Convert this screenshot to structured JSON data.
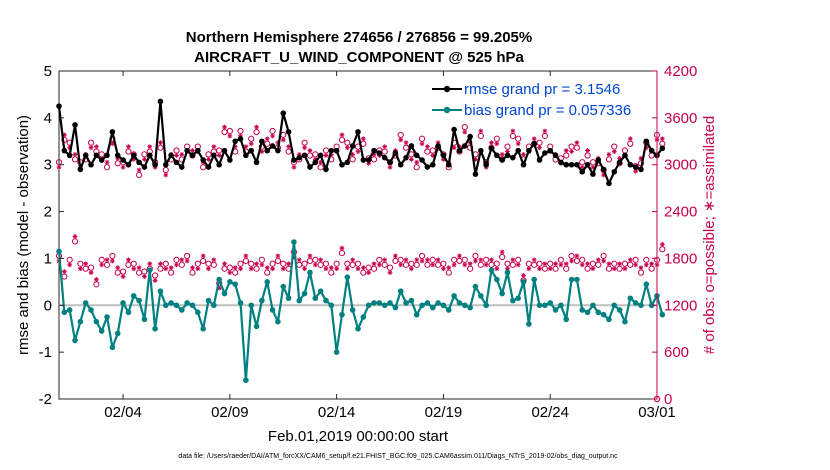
{
  "chart_data": {
    "type": "line",
    "title_line1": "Northern Hemisphere 274656 / 276856 = 99.205%",
    "title_line2": "AIRCRAFT_U_WIND_COMPONENT @ 525 hPa",
    "xlabel": "Feb.01,2019 00:00:00 start",
    "ylabel_left": "rmse and bias (model - observation)",
    "ylabel_right": "# of obs: o=possible; ∗=assimilated",
    "x_range": [
      1,
      29
    ],
    "y_left_range": [
      -2,
      5
    ],
    "y_right_range": [
      0,
      4200
    ],
    "x_ticks": [
      {
        "x": 4,
        "label": "02/04"
      },
      {
        "x": 9,
        "label": "02/09"
      },
      {
        "x": 14,
        "label": "02/14"
      },
      {
        "x": 19,
        "label": "02/19"
      },
      {
        "x": 24,
        "label": "02/24"
      },
      {
        "x": 29,
        "label": "03/01"
      }
    ],
    "y_left_ticks": [
      -2,
      -1,
      0,
      1,
      2,
      3,
      4,
      5
    ],
    "y_right_ticks": [
      0,
      600,
      1200,
      1800,
      2400,
      3000,
      3600,
      4200
    ],
    "legend": [
      {
        "name": "rmse grand pr = 3.1546",
        "color": "#000000"
      },
      {
        "name": "bias grand pr = 0.057336",
        "color": "#008080"
      }
    ],
    "colors": {
      "rmse": "#000000",
      "bias": "#008080",
      "counts": "#c8004e",
      "zero_line": "#bfbfbf"
    },
    "series": [
      {
        "name": "rmse",
        "axis": "left",
        "x_start": 1.0,
        "x_step": 0.25,
        "values": [
          4.25,
          3.3,
          3.2,
          3.85,
          2.9,
          3.2,
          3.0,
          3.2,
          3.1,
          3.2,
          3.7,
          3.2,
          3.1,
          3.0,
          3.2,
          3.05,
          2.95,
          3.2,
          3.0,
          4.35,
          3.0,
          3.2,
          3.05,
          2.95,
          3.3,
          3.2,
          3.3,
          3.1,
          2.95,
          3.2,
          3.0,
          3.3,
          3.1,
          3.5,
          3.55,
          3.2,
          3.3,
          3.05,
          3.5,
          3.3,
          3.4,
          3.3,
          4.1,
          3.7,
          3.1,
          3.15,
          3.2,
          2.95,
          3.05,
          3.2,
          2.9,
          3.3,
          3.3,
          3.0,
          3.05,
          3.4,
          3.7,
          3.1,
          3.1,
          3.3,
          3.25,
          3.15,
          3.05,
          3.25,
          3.0,
          3.15,
          3.4,
          3.2,
          3.1,
          2.95,
          3.0,
          3.4,
          3.2,
          3.0,
          3.75,
          3.3,
          3.4,
          3.6,
          2.8,
          3.3,
          3.0,
          3.35,
          3.2,
          3.1,
          3.2,
          3.15,
          3.3,
          3.0,
          3.3,
          3.45,
          3.1,
          3.25,
          3.3,
          3.2,
          3.05,
          3.0,
          3.0,
          3.0,
          2.85,
          3.0,
          2.8,
          3.1,
          2.9,
          2.6,
          2.85,
          3.05,
          3.2,
          3.0,
          2.95,
          2.9,
          3.5,
          3.3,
          3.2,
          3.35
        ]
      },
      {
        "name": "bias",
        "axis": "left",
        "x_start": 1.0,
        "x_step": 0.25,
        "values": [
          1.15,
          -0.15,
          -0.1,
          -0.75,
          -0.35,
          0.05,
          -0.1,
          -0.35,
          -0.55,
          -0.25,
          -0.9,
          -0.6,
          0.05,
          -0.15,
          0.2,
          0.1,
          -0.3,
          0.75,
          -0.5,
          0.3,
          0.0,
          0.05,
          0.0,
          -0.1,
          0.05,
          0.0,
          -0.15,
          -0.5,
          0.1,
          0.0,
          0.55,
          0.25,
          0.5,
          0.45,
          0.05,
          -1.6,
          0.0,
          -0.45,
          0.1,
          0.5,
          -0.1,
          -0.35,
          0.4,
          0.15,
          1.35,
          0.1,
          0.25,
          0.7,
          0.15,
          0.3,
          0.1,
          0.0,
          -1.0,
          -0.2,
          0.6,
          -0.1,
          -0.5,
          -0.25,
          0.0,
          0.05,
          0.05,
          0.0,
          0.05,
          -0.05,
          0.3,
          0.05,
          0.1,
          -0.2,
          0.0,
          0.05,
          -0.05,
          0.05,
          0.0,
          -0.1,
          0.2,
          0.05,
          0.0,
          -0.05,
          0.4,
          0.2,
          0.0,
          0.75,
          0.55,
          0.25,
          0.7,
          0.1,
          0.15,
          0.5,
          -0.4,
          0.55,
          0.0,
          0.0,
          0.05,
          -0.1,
          0.0,
          -0.3,
          0.55,
          0.55,
          -0.1,
          -0.15,
          0.0,
          -0.15,
          -0.2,
          -0.3,
          0.0,
          -0.1,
          -0.35,
          0.15,
          0.05,
          0.0,
          0.45,
          0.0,
          0.2,
          -0.2
        ]
      },
      {
        "name": "obs_possible_upper",
        "axis": "right",
        "x_start": 1.0,
        "x_step": 0.25,
        "values": [
          3000,
          3350,
          3250,
          3100,
          3000,
          3100,
          3250,
          3200,
          3100,
          3000,
          3300,
          3050,
          3000,
          3200,
          3100,
          2900,
          3100,
          3200,
          3000,
          3250,
          2900,
          3100,
          3150,
          3100,
          3200,
          3150,
          3200,
          3000,
          3100,
          3200,
          3150,
          3450,
          3400,
          3200,
          3400,
          3200,
          3300,
          3450,
          3200,
          3300,
          3400,
          3250,
          3350,
          3200,
          3000,
          3100,
          3250,
          3150,
          3100,
          3000,
          3150,
          3100,
          3200,
          3350,
          3250,
          3100,
          3200,
          3300,
          3050,
          3100,
          3150,
          3200,
          3000,
          3150,
          3350,
          3250,
          3100,
          3000,
          3300,
          3200,
          3150,
          3250,
          3100,
          3000,
          3250,
          3200,
          3450,
          3250,
          3100,
          3400,
          3000,
          3250,
          3300,
          3100,
          3200,
          3400,
          3300,
          3100,
          3200,
          3300,
          3250,
          3400,
          3200,
          3100,
          3050,
          3150,
          3200,
          3250,
          3000,
          3150,
          3000,
          3050,
          2900,
          3100,
          3200,
          3050,
          3150,
          3300,
          2950,
          3050,
          3250,
          3150,
          3350,
          3300
        ]
      },
      {
        "name": "obs_possible_lower",
        "axis": "right",
        "x_start": 1.0,
        "x_step": 0.25,
        "values": [
          1800,
          1600,
          1750,
          2050,
          1700,
          1700,
          1650,
          1500,
          1750,
          1750,
          1800,
          1650,
          1600,
          1750,
          1700,
          1650,
          1600,
          1700,
          1550,
          1700,
          1700,
          1650,
          1750,
          1750,
          1800,
          1650,
          1700,
          1800,
          1700,
          1750,
          1450,
          1700,
          1650,
          1650,
          1700,
          1800,
          1700,
          1700,
          1750,
          1650,
          1700,
          1800,
          1700,
          1700,
          1850,
          1750,
          1700,
          1800,
          1750,
          1750,
          1700,
          1650,
          1700,
          1900,
          1700,
          1750,
          1700,
          1650,
          1650,
          1700,
          1750,
          1750,
          1650,
          1800,
          1750,
          1750,
          1700,
          1750,
          1800,
          1750,
          1750,
          1750,
          1700,
          1650,
          1750,
          1800,
          1750,
          1700,
          1800,
          1750,
          1750,
          1750,
          1700,
          1850,
          1700,
          1750,
          1750,
          1550,
          1700,
          1750,
          1700,
          1700,
          1700,
          1700,
          1750,
          1700,
          1800,
          1800,
          1750,
          1700,
          1700,
          1750,
          1800,
          1700,
          1700,
          1700,
          1700,
          1750,
          1750,
          1650,
          1750,
          1700,
          1750,
          1950
        ]
      }
    ]
  },
  "footer": {
    "data_file": "data file: /Users/raeder/DAI/ATM_forcXX/CAM6_setup/f.e21.FHIST_BGC.f09_025.CAM6assim.011/Diags_NTrS_2019-02/obs_diag_output.nc"
  }
}
